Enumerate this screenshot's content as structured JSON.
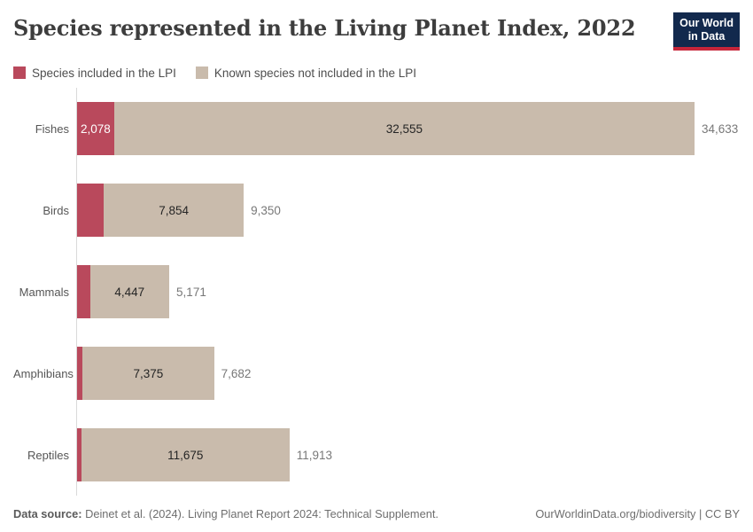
{
  "header": {
    "title": "Species represented in the Living Planet Index, 2022",
    "logo": {
      "line1": "Our World",
      "line2": "in Data"
    }
  },
  "colors": {
    "included": "#b9495c",
    "not_included": "#c9bbac",
    "logo_bg": "#12294d",
    "logo_accent": "#c7253a",
    "axis_line": "#d9d9d9"
  },
  "chart_data": {
    "type": "bar",
    "orientation": "horizontal",
    "stacked": true,
    "title": "Species represented in the Living Planet Index, 2022",
    "categories": [
      "Fishes",
      "Birds",
      "Mammals",
      "Amphibians",
      "Reptiles"
    ],
    "series": [
      {
        "name": "Species included in the LPI",
        "color": "#b9495c",
        "values": [
          2078,
          1496,
          724,
          307,
          238
        ]
      },
      {
        "name": "Known species not included in the LPI",
        "color": "#c9bbac",
        "values": [
          32555,
          7854,
          4447,
          7375,
          11675
        ]
      }
    ],
    "totals": [
      34633,
      9350,
      5171,
      7682,
      11913
    ],
    "segment_labels": {
      "included": [
        "2,078",
        "",
        "",
        "",
        ""
      ],
      "not_included": [
        "32,555",
        "7,854",
        "4,447",
        "7,375",
        "11,675"
      ]
    },
    "total_labels": [
      "34,633",
      "9,350",
      "5,171",
      "7,682",
      "11,913"
    ],
    "xlim": [
      0,
      34633
    ],
    "grid": false,
    "legend_position": "top"
  },
  "footer": {
    "source_label": "Data source:",
    "source_text": " Deinet et al. (2024). Living Planet Report 2024: Technical Supplement.",
    "credit": "OurWorldinData.org/biodiversity | CC BY"
  }
}
